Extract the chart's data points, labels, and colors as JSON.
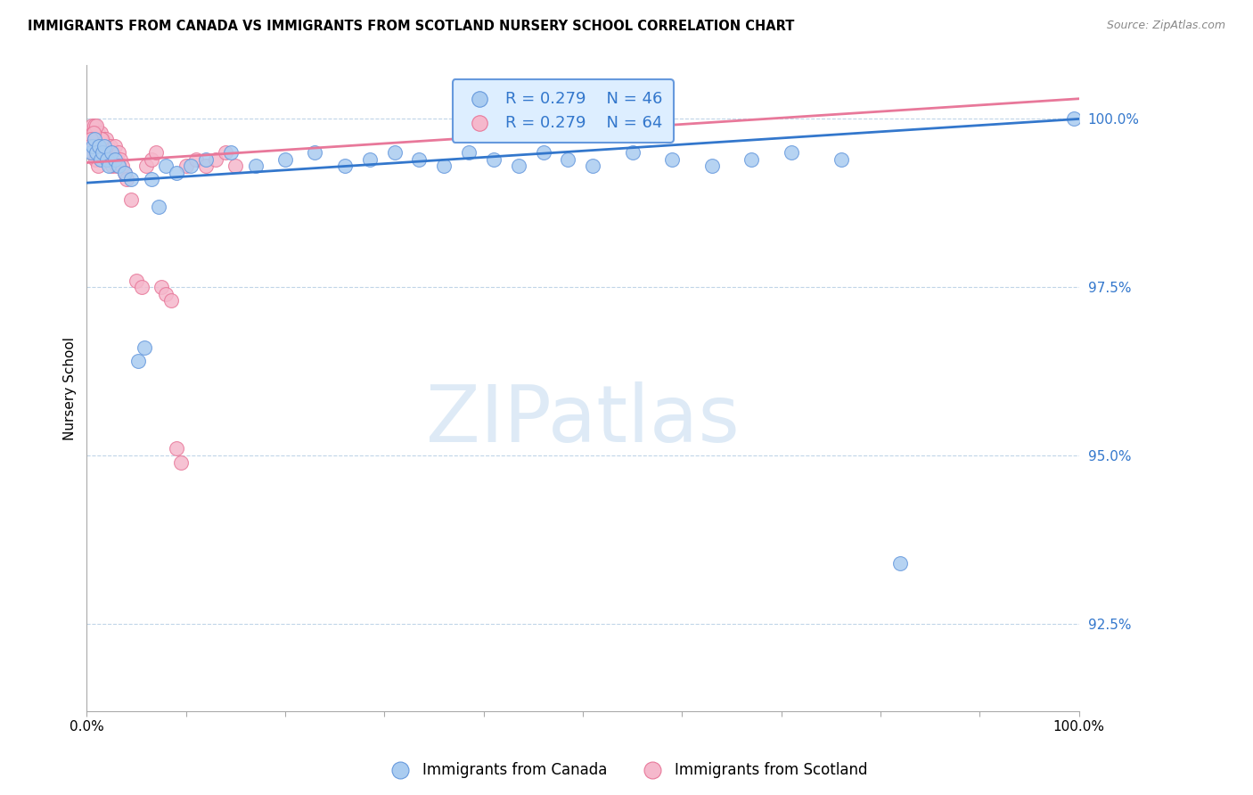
{
  "title": "IMMIGRANTS FROM CANADA VS IMMIGRANTS FROM SCOTLAND NURSERY SCHOOL CORRELATION CHART",
  "source": "Source: ZipAtlas.com",
  "ylabel": "Nursery School",
  "ytick_values": [
    92.5,
    95.0,
    97.5,
    100.0
  ],
  "ymin": 91.2,
  "ymax": 100.8,
  "xmin": 0.0,
  "xmax": 100.0,
  "canada_R": 0.279,
  "canada_N": 46,
  "scotland_R": 0.279,
  "scotland_N": 64,
  "canada_color": "#aaccf0",
  "canada_edge": "#6699dd",
  "scotland_color": "#f5b8cc",
  "scotland_edge": "#e8789a",
  "canada_line_color": "#3377cc",
  "scotland_line_color": "#e8789a",
  "legend_box_color": "#ddeeff",
  "legend_text_color": "#3377cc",
  "canada_points_x": [
    0.4,
    0.6,
    0.8,
    1.0,
    1.2,
    1.4,
    1.6,
    1.8,
    2.0,
    2.2,
    2.5,
    2.8,
    3.2,
    3.8,
    4.5,
    5.2,
    5.8,
    6.5,
    7.2,
    8.0,
    9.0,
    10.5,
    12.0,
    14.5,
    17.0,
    20.0,
    23.0,
    26.0,
    28.5,
    31.0,
    33.5,
    36.0,
    38.5,
    41.0,
    43.5,
    46.0,
    48.5,
    51.0,
    55.0,
    59.0,
    63.0,
    67.0,
    71.0,
    76.0,
    82.0,
    99.5
  ],
  "canada_points_y": [
    99.5,
    99.6,
    99.7,
    99.5,
    99.6,
    99.4,
    99.5,
    99.6,
    99.4,
    99.3,
    99.5,
    99.4,
    99.3,
    99.2,
    99.1,
    96.4,
    96.6,
    99.1,
    98.7,
    99.3,
    99.2,
    99.3,
    99.4,
    99.5,
    99.3,
    99.4,
    99.5,
    99.3,
    99.4,
    99.5,
    99.4,
    99.3,
    99.5,
    99.4,
    99.3,
    99.5,
    99.4,
    99.3,
    99.5,
    99.4,
    99.3,
    99.4,
    99.5,
    99.4,
    93.4,
    100.0
  ],
  "scotland_points_x": [
    0.3,
    0.4,
    0.5,
    0.6,
    0.7,
    0.8,
    0.9,
    1.0,
    1.1,
    1.2,
    1.3,
    1.4,
    1.5,
    1.6,
    1.7,
    1.8,
    1.9,
    2.0,
    2.1,
    2.2,
    2.3,
    2.4,
    2.5,
    2.6,
    2.7,
    2.8,
    2.9,
    3.0,
    3.2,
    3.4,
    3.6,
    3.8,
    4.0,
    4.5,
    5.0,
    5.5,
    6.0,
    6.5,
    7.0,
    7.5,
    8.0,
    8.5,
    9.0,
    9.5,
    10.0,
    11.0,
    12.0,
    13.0,
    14.0,
    15.0,
    1.2,
    1.4,
    1.6,
    0.8,
    1.0,
    1.5,
    0.5,
    0.7,
    0.4,
    0.6,
    0.3,
    0.9,
    1.1,
    1.3
  ],
  "scotland_points_y": [
    99.8,
    99.7,
    99.9,
    99.8,
    99.7,
    99.9,
    99.8,
    99.7,
    99.8,
    99.6,
    99.7,
    99.8,
    99.6,
    99.7,
    99.5,
    99.6,
    99.7,
    99.5,
    99.6,
    99.4,
    99.5,
    99.6,
    99.4,
    99.3,
    99.5,
    99.6,
    99.4,
    99.3,
    99.5,
    99.4,
    99.3,
    99.2,
    99.1,
    98.8,
    97.6,
    97.5,
    99.3,
    99.4,
    99.5,
    97.5,
    97.4,
    97.3,
    95.1,
    94.9,
    99.3,
    99.4,
    99.3,
    99.4,
    99.5,
    99.3,
    99.6,
    99.7,
    99.5,
    99.8,
    99.9,
    99.7,
    99.6,
    99.8,
    99.7,
    99.5,
    99.6,
    99.4,
    99.3,
    99.5
  ],
  "canada_trend_x": [
    0,
    100
  ],
  "canada_trend_y": [
    99.05,
    100.0
  ],
  "scotland_trend_x": [
    0,
    100
  ],
  "scotland_trend_y": [
    99.35,
    100.3
  ],
  "watermark_text": "ZIPatlas",
  "watermark_color": "#c8ddf0",
  "background_color": "#ffffff"
}
